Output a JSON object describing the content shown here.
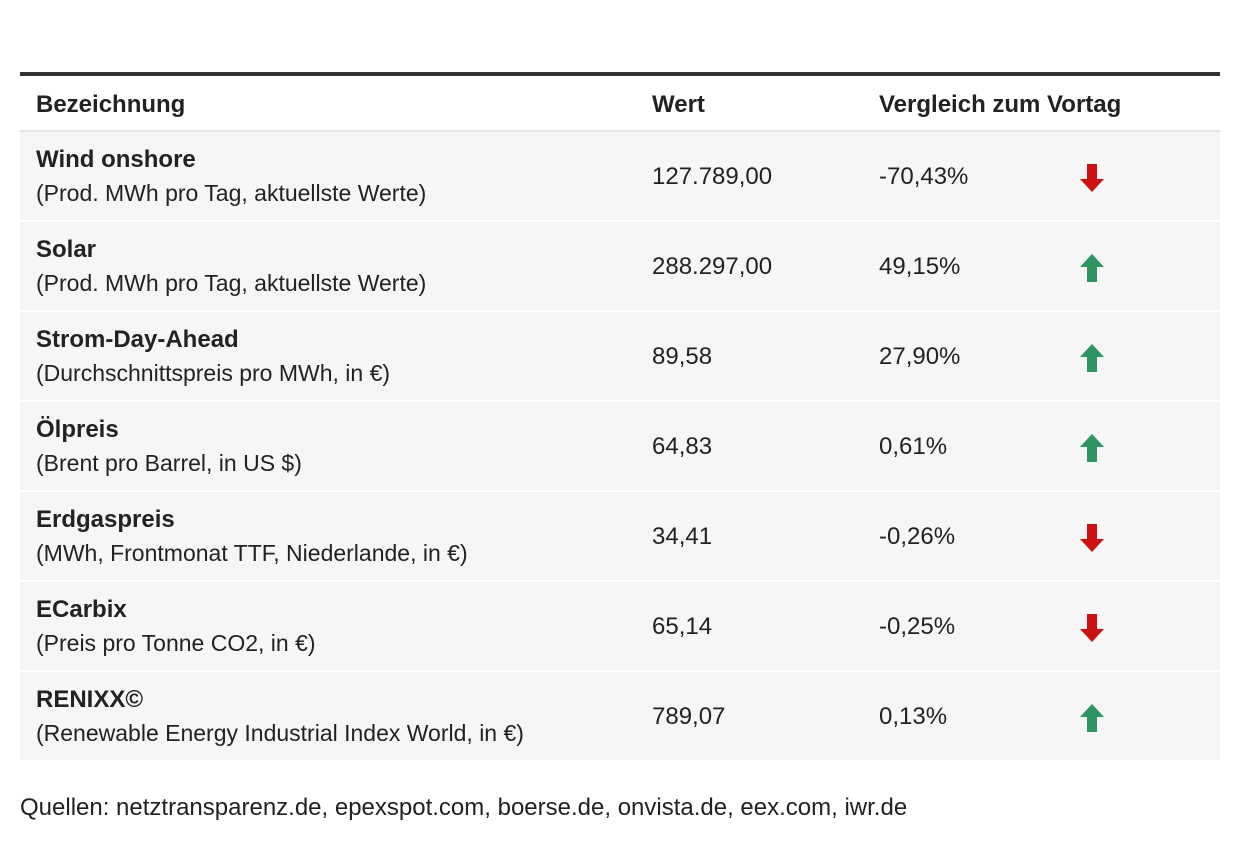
{
  "table": {
    "headers": {
      "name": "Bezeichnung",
      "value": "Wert",
      "change": "Vergleich zum Vortag"
    },
    "rows": [
      {
        "name": "Wind onshore",
        "desc": "(Prod. MWh pro Tag, aktuellste Werte)",
        "value": "127.789,00",
        "change": "-70,43%",
        "direction": "down",
        "icon": "arrow-down-icon"
      },
      {
        "name": "Solar",
        "desc": "(Prod. MWh pro Tag, aktuellste Werte)",
        "value": "288.297,00",
        "change": "49,15%",
        "direction": "up",
        "icon": "arrow-up-icon"
      },
      {
        "name": "Strom-Day-Ahead",
        "desc": "(Durchschnittspreis pro MWh, in €)",
        "value": "89,58",
        "change": "27,90%",
        "direction": "up",
        "icon": "arrow-up-icon"
      },
      {
        "name": "Ölpreis",
        "desc": "(Brent pro Barrel, in US $)",
        "value": "64,83",
        "change": "0,61%",
        "direction": "up",
        "icon": "arrow-up-icon"
      },
      {
        "name": "Erdgaspreis",
        "desc": "(MWh, Frontmonat TTF, Niederlande, in €)",
        "value": "34,41",
        "change": "-0,26%",
        "direction": "down",
        "icon": "arrow-down-icon"
      },
      {
        "name": "ECarbix",
        "desc": "(Preis pro Tonne CO2, in €)",
        "value": "65,14",
        "change": "-0,25%",
        "direction": "down",
        "icon": "arrow-down-icon"
      },
      {
        "name": "RENIXX©",
        "desc": "(Renewable Energy Industrial Index World, in €)",
        "value": "789,07",
        "change": "0,13%",
        "direction": "up",
        "icon": "arrow-up-icon"
      }
    ]
  },
  "source": "Quellen: netztransparenz.de, epexspot.com, boerse.de, onvista.de, eex.com, iwr.de",
  "colors": {
    "up": "#2e9460",
    "down": "#cc1111",
    "row_background": "#f6f6f6",
    "top_rule": "#333333"
  }
}
